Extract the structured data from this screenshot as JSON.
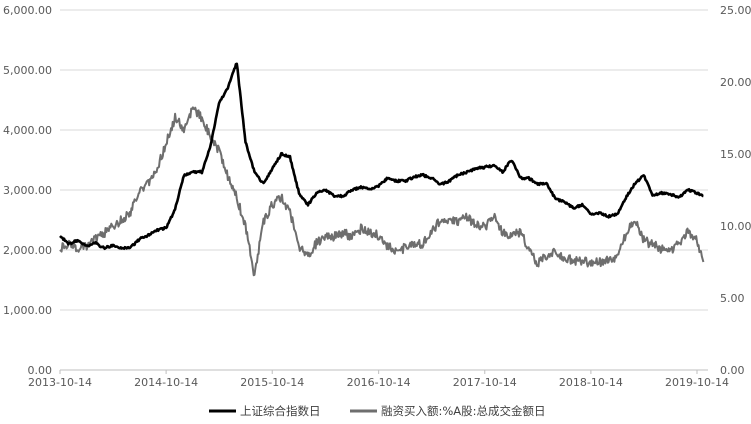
{
  "chart_data": {
    "type": "line",
    "x_ticks": [
      "2013-10-14",
      "2014-10-14",
      "2015-10-14",
      "2016-10-14",
      "2017-10-14",
      "2018-10-14",
      "2019-10-14"
    ],
    "y_left": {
      "min": 0,
      "max": 6000,
      "ticks": [
        "0.00",
        "1,000.00",
        "2,000.00",
        "3,000.00",
        "4,000.00",
        "5,000.00",
        "6,000.00"
      ]
    },
    "y_right": {
      "min": 0,
      "max": 25,
      "ticks": [
        "0.00",
        "5.00",
        "10.00",
        "15.00",
        "20.00",
        "25.00"
      ]
    },
    "grid": "horizontal",
    "legend_position": "bottom",
    "series": [
      {
        "name": "上证综合指数日",
        "axis": "left",
        "color": "#000000",
        "points": [
          [
            "2013-10-14",
            2230
          ],
          [
            "2013-11-14",
            2100
          ],
          [
            "2013-12-14",
            2160
          ],
          [
            "2014-01-14",
            2060
          ],
          [
            "2014-02-14",
            2120
          ],
          [
            "2014-03-14",
            2030
          ],
          [
            "2014-04-14",
            2080
          ],
          [
            "2014-05-14",
            2030
          ],
          [
            "2014-06-14",
            2040
          ],
          [
            "2014-07-14",
            2180
          ],
          [
            "2014-08-14",
            2250
          ],
          [
            "2014-09-14",
            2330
          ],
          [
            "2014-10-14",
            2370
          ],
          [
            "2014-11-14",
            2680
          ],
          [
            "2014-12-14",
            3250
          ],
          [
            "2015-01-14",
            3300
          ],
          [
            "2015-02-14",
            3300
          ],
          [
            "2015-03-14",
            3700
          ],
          [
            "2015-04-14",
            4450
          ],
          [
            "2015-05-14",
            4700
          ],
          [
            "2015-06-14",
            5120
          ],
          [
            "2015-07-14",
            3800
          ],
          [
            "2015-08-14",
            3300
          ],
          [
            "2015-09-14",
            3100
          ],
          [
            "2015-10-14",
            3350
          ],
          [
            "2015-11-14",
            3600
          ],
          [
            "2015-12-14",
            3550
          ],
          [
            "2016-01-14",
            2950
          ],
          [
            "2016-02-14",
            2750
          ],
          [
            "2016-03-14",
            2950
          ],
          [
            "2016-04-14",
            3000
          ],
          [
            "2016-05-14",
            2900
          ],
          [
            "2016-06-14",
            2900
          ],
          [
            "2016-07-14",
            3000
          ],
          [
            "2016-08-14",
            3050
          ],
          [
            "2016-09-14",
            3020
          ],
          [
            "2016-10-14",
            3070
          ],
          [
            "2016-11-14",
            3200
          ],
          [
            "2016-12-14",
            3150
          ],
          [
            "2017-01-14",
            3150
          ],
          [
            "2017-02-14",
            3220
          ],
          [
            "2017-03-14",
            3250
          ],
          [
            "2017-04-14",
            3200
          ],
          [
            "2017-05-14",
            3090
          ],
          [
            "2017-06-14",
            3150
          ],
          [
            "2017-07-14",
            3250
          ],
          [
            "2017-08-14",
            3300
          ],
          [
            "2017-09-14",
            3360
          ],
          [
            "2017-10-14",
            3380
          ],
          [
            "2017-11-14",
            3410
          ],
          [
            "2017-12-14",
            3300
          ],
          [
            "2018-01-14",
            3500
          ],
          [
            "2018-02-14",
            3200
          ],
          [
            "2018-03-14",
            3200
          ],
          [
            "2018-04-14",
            3100
          ],
          [
            "2018-05-14",
            3120
          ],
          [
            "2018-06-14",
            2850
          ],
          [
            "2018-07-14",
            2800
          ],
          [
            "2018-08-14",
            2700
          ],
          [
            "2018-09-14",
            2750
          ],
          [
            "2018-10-14",
            2600
          ],
          [
            "2018-11-14",
            2620
          ],
          [
            "2018-12-14",
            2560
          ],
          [
            "2019-01-14",
            2600
          ],
          [
            "2019-02-14",
            2900
          ],
          [
            "2019-03-14",
            3100
          ],
          [
            "2019-04-14",
            3250
          ],
          [
            "2019-05-14",
            2900
          ],
          [
            "2019-06-14",
            2950
          ],
          [
            "2019-07-14",
            2930
          ],
          [
            "2019-08-14",
            2880
          ],
          [
            "2019-09-14",
            3000
          ],
          [
            "2019-10-14",
            2950
          ],
          [
            "2019-11-05",
            2900
          ]
        ]
      },
      {
        "name": "融资买入额:%A股:总成交金额日",
        "axis": "right",
        "color": "#6e6e6e",
        "points": [
          [
            "2013-10-14",
            8.4
          ],
          [
            "2013-11-14",
            8.8
          ],
          [
            "2013-12-14",
            8.5
          ],
          [
            "2014-01-14",
            8.6
          ],
          [
            "2014-02-14",
            9.1
          ],
          [
            "2014-03-14",
            9.5
          ],
          [
            "2014-04-14",
            10.0
          ],
          [
            "2014-05-14",
            10.4
          ],
          [
            "2014-06-14",
            11.0
          ],
          [
            "2014-07-14",
            12.5
          ],
          [
            "2014-08-14",
            13.0
          ],
          [
            "2014-09-14",
            14.0
          ],
          [
            "2014-10-14",
            15.8
          ],
          [
            "2014-11-14",
            17.5
          ],
          [
            "2014-12-14",
            16.8
          ],
          [
            "2015-01-14",
            18.2
          ],
          [
            "2015-02-14",
            17.5
          ],
          [
            "2015-03-14",
            16.3
          ],
          [
            "2015-04-14",
            15.2
          ],
          [
            "2015-05-14",
            13.5
          ],
          [
            "2015-06-14",
            12.0
          ],
          [
            "2015-07-14",
            10.0
          ],
          [
            "2015-08-14",
            6.5
          ],
          [
            "2015-09-14",
            10.3
          ],
          [
            "2015-10-14",
            11.5
          ],
          [
            "2015-11-14",
            12.0
          ],
          [
            "2015-12-14",
            11.0
          ],
          [
            "2016-01-14",
            8.5
          ],
          [
            "2016-02-14",
            8.0
          ],
          [
            "2016-03-14",
            8.8
          ],
          [
            "2016-04-14",
            9.2
          ],
          [
            "2016-05-14",
            9.3
          ],
          [
            "2016-06-14",
            9.5
          ],
          [
            "2016-07-14",
            9.3
          ],
          [
            "2016-08-14",
            9.8
          ],
          [
            "2016-09-14",
            9.6
          ],
          [
            "2016-10-14",
            9.3
          ],
          [
            "2016-11-14",
            8.6
          ],
          [
            "2016-12-14",
            8.2
          ],
          [
            "2017-01-14",
            8.5
          ],
          [
            "2017-02-14",
            8.8
          ],
          [
            "2017-03-14",
            8.7
          ],
          [
            "2017-04-14",
            9.6
          ],
          [
            "2017-05-14",
            10.4
          ],
          [
            "2017-06-14",
            10.5
          ],
          [
            "2017-07-14",
            10.3
          ],
          [
            "2017-08-14",
            10.6
          ],
          [
            "2017-09-14",
            10.1
          ],
          [
            "2017-10-14",
            9.9
          ],
          [
            "2017-11-14",
            10.7
          ],
          [
            "2017-12-14",
            9.5
          ],
          [
            "2018-01-14",
            9.4
          ],
          [
            "2018-02-14",
            9.6
          ],
          [
            "2018-03-14",
            8.4
          ],
          [
            "2018-04-14",
            7.4
          ],
          [
            "2018-05-14",
            7.9
          ],
          [
            "2018-06-14",
            8.3
          ],
          [
            "2018-07-14",
            7.8
          ],
          [
            "2018-08-14",
            7.6
          ],
          [
            "2018-09-14",
            7.6
          ],
          [
            "2018-10-14",
            7.4
          ],
          [
            "2018-11-14",
            7.5
          ],
          [
            "2018-12-14",
            7.6
          ],
          [
            "2019-01-14",
            7.9
          ],
          [
            "2019-02-14",
            9.6
          ],
          [
            "2019-03-14",
            10.4
          ],
          [
            "2019-04-14",
            9.0
          ],
          [
            "2019-05-14",
            8.7
          ],
          [
            "2019-06-14",
            8.4
          ],
          [
            "2019-07-14",
            8.3
          ],
          [
            "2019-08-14",
            8.8
          ],
          [
            "2019-09-14",
            9.6
          ],
          [
            "2019-10-14",
            9.1
          ],
          [
            "2019-11-05",
            7.5
          ]
        ]
      }
    ]
  }
}
